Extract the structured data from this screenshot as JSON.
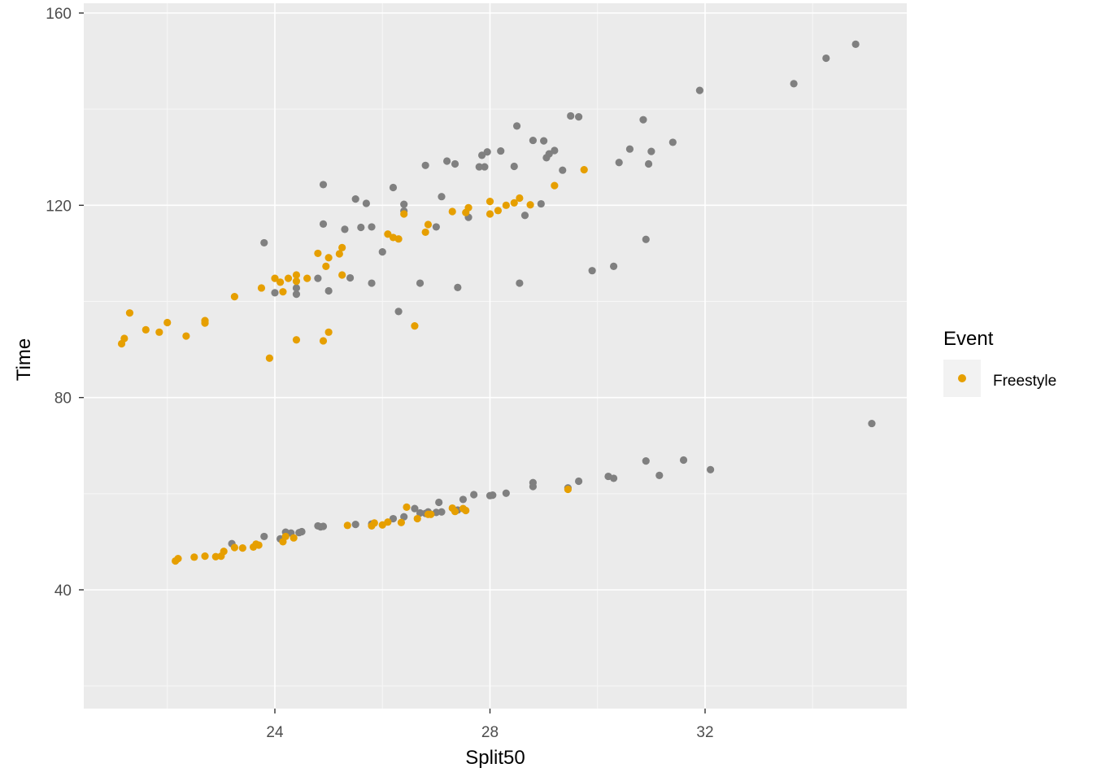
{
  "chart_data": {
    "type": "scatter",
    "title": "",
    "xlabel": "Split50",
    "ylabel": "Time",
    "xlim": [
      20.5,
      35.9
    ],
    "ylim": [
      20,
      160
    ],
    "x_ticks": [
      24,
      28,
      32
    ],
    "y_ticks": [
      40,
      80,
      120,
      160
    ],
    "grid": true,
    "panel_background": "#ebebeb",
    "legend": {
      "title": "Event",
      "position": "right",
      "entries": [
        {
          "label": "Freestyle",
          "color": "#e69f00"
        }
      ]
    },
    "series": [
      {
        "name": "",
        "color": "#808080",
        "points": [
          [
            23.8,
            112.2
          ],
          [
            24.0,
            101.8
          ],
          [
            24.4,
            102.8
          ],
          [
            24.4,
            101.5
          ],
          [
            24.8,
            104.8
          ],
          [
            24.9,
            124.3
          ],
          [
            24.9,
            116.1
          ],
          [
            25.0,
            102.2
          ],
          [
            25.3,
            115.0
          ],
          [
            25.4,
            104.9
          ],
          [
            25.5,
            121.3
          ],
          [
            25.6,
            115.4
          ],
          [
            25.7,
            120.4
          ],
          [
            25.8,
            115.5
          ],
          [
            25.8,
            103.8
          ],
          [
            26.0,
            110.3
          ],
          [
            26.2,
            123.7
          ],
          [
            26.3,
            97.9
          ],
          [
            26.4,
            120.2
          ],
          [
            26.4,
            118.8
          ],
          [
            26.7,
            103.8
          ],
          [
            26.8,
            128.3
          ],
          [
            27.0,
            115.5
          ],
          [
            27.1,
            121.8
          ],
          [
            27.2,
            129.2
          ],
          [
            27.35,
            128.6
          ],
          [
            27.4,
            102.9
          ],
          [
            27.6,
            117.5
          ],
          [
            27.8,
            128.0
          ],
          [
            27.85,
            130.4
          ],
          [
            27.9,
            128.0
          ],
          [
            27.95,
            131.1
          ],
          [
            28.2,
            131.3
          ],
          [
            28.45,
            128.1
          ],
          [
            28.5,
            136.5
          ],
          [
            28.55,
            103.8
          ],
          [
            28.65,
            117.9
          ],
          [
            28.8,
            133.5
          ],
          [
            28.95,
            120.3
          ],
          [
            29.0,
            133.4
          ],
          [
            29.05,
            129.9
          ],
          [
            29.1,
            130.7
          ],
          [
            29.2,
            131.4
          ],
          [
            29.35,
            127.3
          ],
          [
            29.5,
            138.6
          ],
          [
            29.65,
            138.4
          ],
          [
            29.9,
            106.4
          ],
          [
            30.3,
            107.3
          ],
          [
            30.4,
            128.9
          ],
          [
            30.6,
            131.7
          ],
          [
            30.85,
            137.8
          ],
          [
            30.9,
            112.9
          ],
          [
            30.95,
            128.6
          ],
          [
            31.0,
            131.2
          ],
          [
            31.4,
            133.1
          ],
          [
            31.9,
            143.9
          ],
          [
            33.65,
            145.3
          ],
          [
            34.25,
            150.6
          ],
          [
            34.8,
            153.5
          ],
          [
            23.2,
            49.6
          ],
          [
            23.8,
            51.1
          ],
          [
            24.1,
            50.6
          ],
          [
            24.2,
            52.0
          ],
          [
            24.3,
            51.8
          ],
          [
            24.45,
            51.9
          ],
          [
            24.5,
            52.1
          ],
          [
            24.8,
            53.3
          ],
          [
            24.85,
            53.1
          ],
          [
            24.9,
            53.2
          ],
          [
            25.5,
            53.6
          ],
          [
            25.8,
            53.7
          ],
          [
            26.2,
            54.8
          ],
          [
            26.4,
            55.2
          ],
          [
            26.6,
            56.9
          ],
          [
            26.7,
            56.0
          ],
          [
            26.8,
            55.9
          ],
          [
            26.85,
            56.2
          ],
          [
            27.0,
            56.1
          ],
          [
            27.05,
            58.2
          ],
          [
            27.1,
            56.2
          ],
          [
            27.4,
            56.6
          ],
          [
            27.5,
            58.8
          ],
          [
            27.7,
            59.8
          ],
          [
            28.0,
            59.6
          ],
          [
            28.05,
            59.7
          ],
          [
            28.3,
            60.1
          ],
          [
            28.8,
            61.5
          ],
          [
            28.8,
            62.3
          ],
          [
            29.45,
            61.2
          ],
          [
            29.65,
            62.6
          ],
          [
            30.2,
            63.6
          ],
          [
            30.3,
            63.2
          ],
          [
            30.9,
            66.8
          ],
          [
            31.15,
            63.8
          ],
          [
            31.6,
            67.0
          ],
          [
            32.1,
            65.0
          ],
          [
            35.1,
            74.6
          ]
        ]
      },
      {
        "name": "Freestyle",
        "color": "#e69f00",
        "points": [
          [
            21.15,
            91.2
          ],
          [
            21.2,
            92.3
          ],
          [
            21.3,
            97.6
          ],
          [
            21.6,
            94.1
          ],
          [
            21.85,
            93.6
          ],
          [
            22.0,
            95.6
          ],
          [
            22.35,
            92.8
          ],
          [
            22.7,
            96.0
          ],
          [
            22.7,
            95.5
          ],
          [
            23.25,
            101.0
          ],
          [
            23.75,
            102.8
          ],
          [
            23.9,
            88.2
          ],
          [
            24.0,
            104.8
          ],
          [
            24.1,
            104.0
          ],
          [
            24.15,
            102.0
          ],
          [
            24.25,
            104.8
          ],
          [
            24.4,
            105.5
          ],
          [
            24.4,
            104.2
          ],
          [
            24.4,
            92.0
          ],
          [
            24.6,
            104.8
          ],
          [
            24.8,
            110.0
          ],
          [
            24.9,
            91.8
          ],
          [
            24.95,
            107.3
          ],
          [
            25.0,
            109.1
          ],
          [
            25.0,
            93.6
          ],
          [
            25.2,
            109.9
          ],
          [
            25.25,
            111.2
          ],
          [
            25.25,
            105.5
          ],
          [
            26.1,
            114.0
          ],
          [
            26.2,
            113.3
          ],
          [
            26.3,
            113.0
          ],
          [
            26.4,
            118.2
          ],
          [
            26.6,
            94.9
          ],
          [
            26.8,
            114.4
          ],
          [
            26.85,
            116.0
          ],
          [
            27.3,
            118.7
          ],
          [
            27.55,
            118.5
          ],
          [
            27.6,
            119.5
          ],
          [
            28.0,
            120.8
          ],
          [
            28.0,
            118.2
          ],
          [
            28.15,
            118.9
          ],
          [
            28.3,
            120.0
          ],
          [
            28.45,
            120.5
          ],
          [
            28.55,
            121.5
          ],
          [
            28.75,
            120.1
          ],
          [
            29.2,
            124.1
          ],
          [
            29.75,
            127.4
          ],
          [
            22.15,
            46.0
          ],
          [
            22.2,
            46.5
          ],
          [
            22.5,
            46.8
          ],
          [
            22.7,
            47.0
          ],
          [
            22.9,
            46.9
          ],
          [
            23.0,
            47.0
          ],
          [
            23.05,
            48.0
          ],
          [
            23.25,
            48.8
          ],
          [
            23.4,
            48.7
          ],
          [
            23.6,
            48.9
          ],
          [
            23.65,
            49.5
          ],
          [
            23.7,
            49.3
          ],
          [
            24.15,
            50.0
          ],
          [
            24.2,
            51.1
          ],
          [
            24.35,
            50.8
          ],
          [
            25.35,
            53.4
          ],
          [
            25.8,
            53.3
          ],
          [
            25.85,
            53.9
          ],
          [
            26.0,
            53.5
          ],
          [
            26.1,
            54.1
          ],
          [
            26.35,
            54.0
          ],
          [
            26.45,
            57.2
          ],
          [
            26.65,
            54.8
          ],
          [
            26.85,
            55.7
          ],
          [
            26.9,
            55.7
          ],
          [
            27.3,
            57.0
          ],
          [
            27.35,
            56.3
          ],
          [
            27.5,
            56.9
          ],
          [
            27.55,
            56.5
          ],
          [
            29.45,
            60.9
          ]
        ]
      }
    ]
  }
}
